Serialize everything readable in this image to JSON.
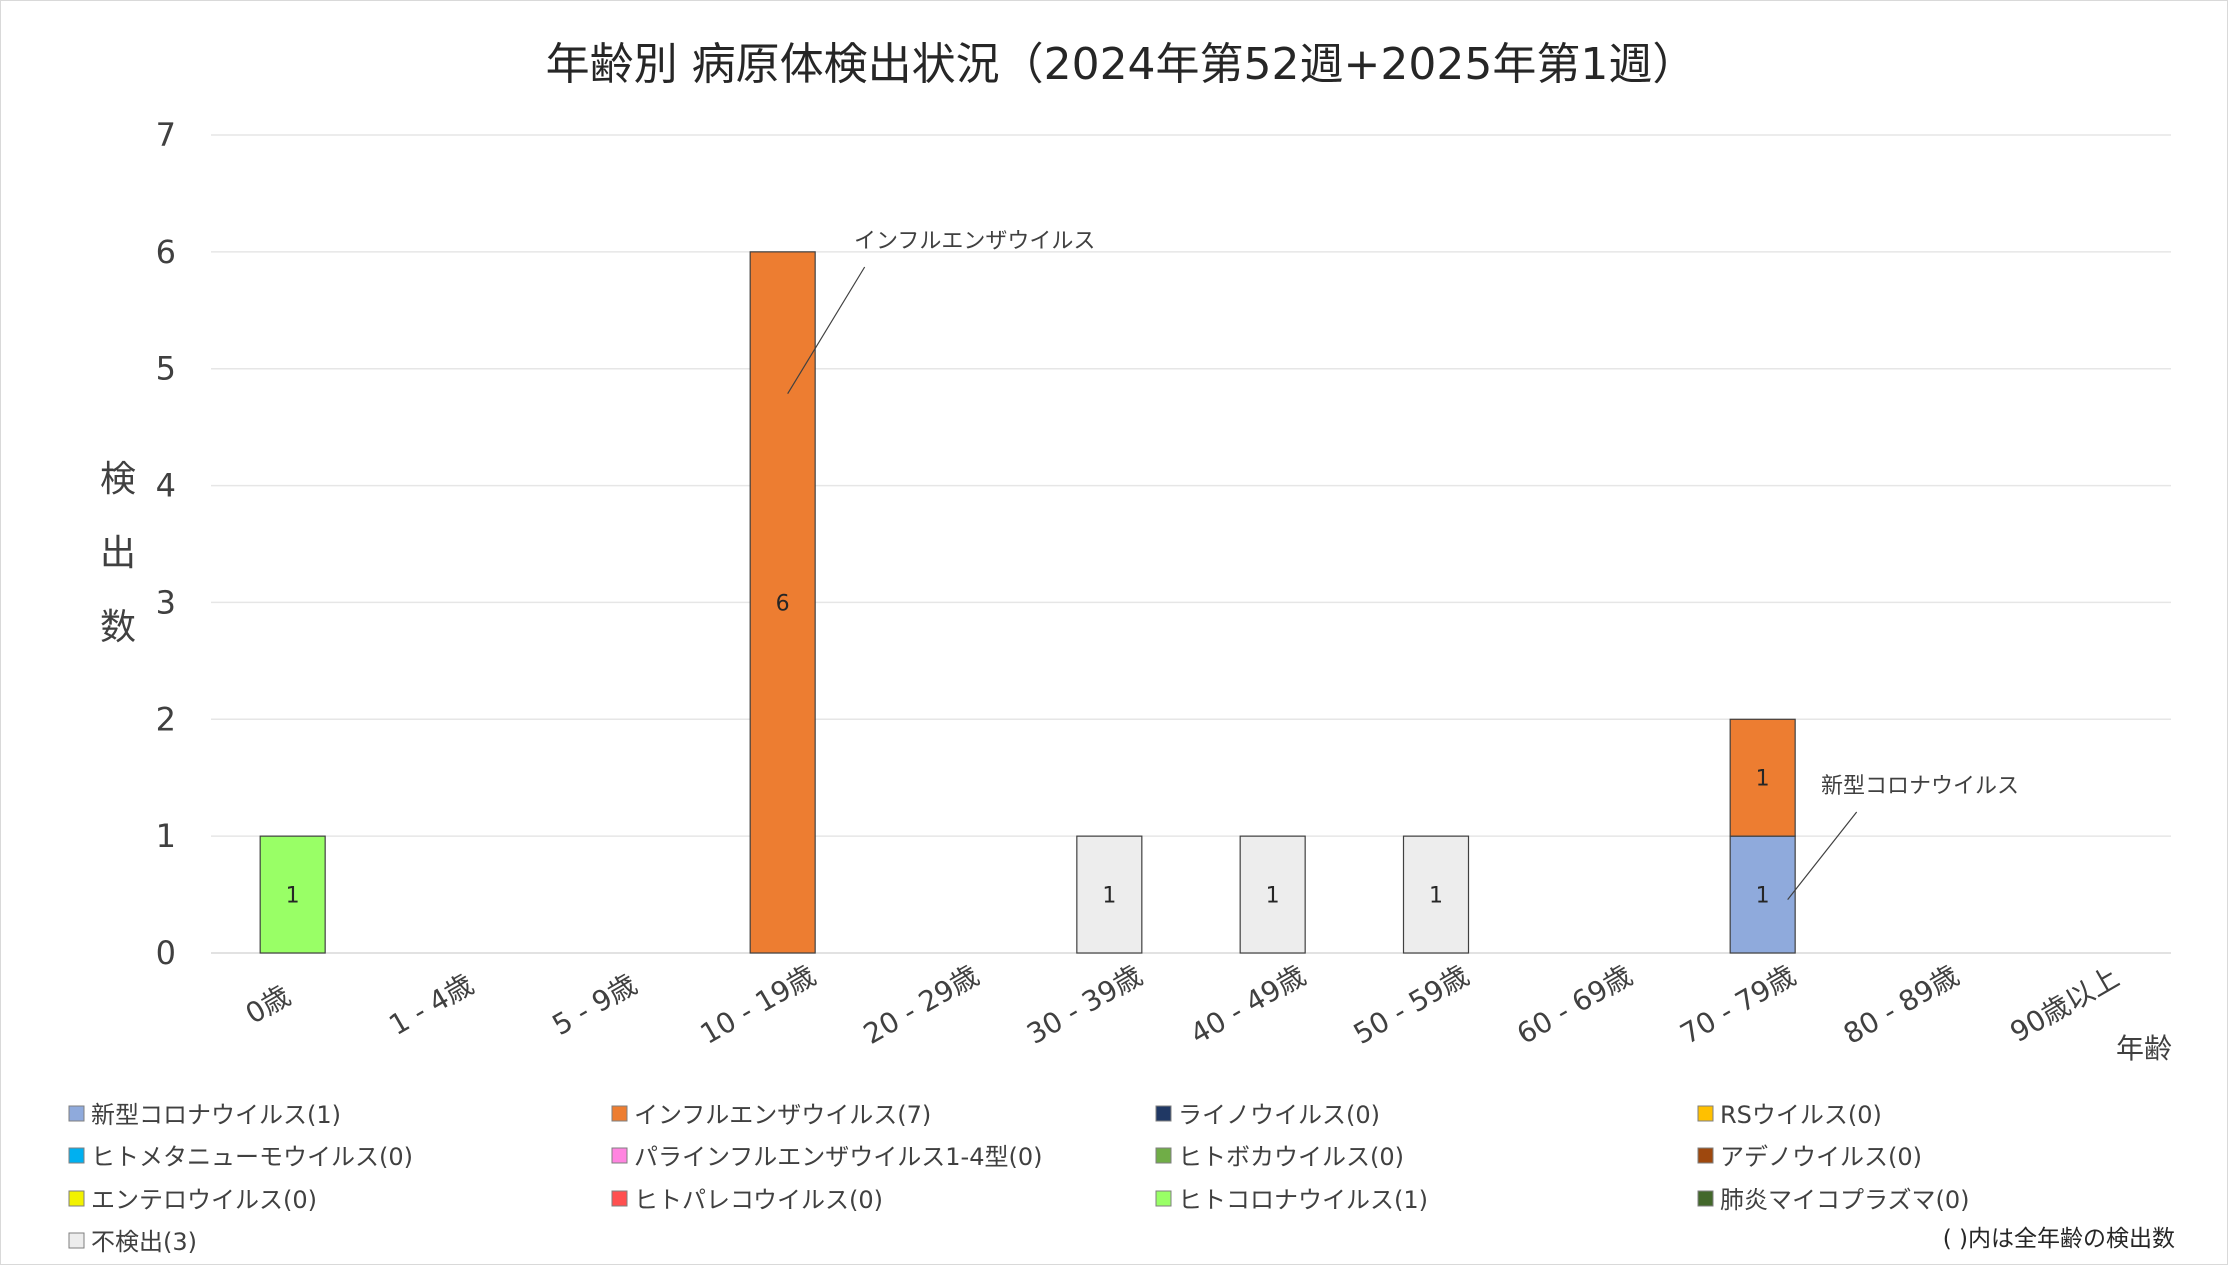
{
  "chart_data": {
    "type": "bar",
    "stacked": true,
    "title": "年齢別 病原体検出状況（2024年第52週+2025年第1週）",
    "xlabel": "年齢",
    "ylabel": "検出数",
    "ylim": [
      0,
      7
    ],
    "yticks": [
      "0",
      "1",
      "2",
      "3",
      "4",
      "5",
      "6",
      "7"
    ],
    "grid": true,
    "legend_placement": "bottom",
    "categories": [
      "0歳",
      "1 - 4歳",
      "5 - 9歳",
      "10 - 19歳",
      "20 - 29歳",
      "30 - 39歳",
      "40 - 49歳",
      "50 - 59歳",
      "60 - 69歳",
      "70 - 79歳",
      "80 - 89歳",
      "90歳以上"
    ],
    "series": [
      {
        "name": "新型コロナウイルス(1)",
        "color": "#8faadc",
        "values": [
          0,
          0,
          0,
          0,
          0,
          0,
          0,
          0,
          0,
          1,
          0,
          0
        ]
      },
      {
        "name": "インフルエンザウイルス(7)",
        "color": "#ed7d31",
        "values": [
          0,
          0,
          0,
          6,
          0,
          0,
          0,
          0,
          0,
          1,
          0,
          0
        ]
      },
      {
        "name": "ライノウイルス(0)",
        "color": "#203864",
        "values": [
          0,
          0,
          0,
          0,
          0,
          0,
          0,
          0,
          0,
          0,
          0,
          0
        ]
      },
      {
        "name": "RSウイルス(0)",
        "color": "#ffc000",
        "values": [
          0,
          0,
          0,
          0,
          0,
          0,
          0,
          0,
          0,
          0,
          0,
          0
        ]
      },
      {
        "name": "ヒトメタニューモウイルス(0)",
        "color": "#00b0f0",
        "values": [
          0,
          0,
          0,
          0,
          0,
          0,
          0,
          0,
          0,
          0,
          0,
          0
        ]
      },
      {
        "name": "パラインフルエンザウイルス1-4型(0)",
        "color": "#ff85e0",
        "values": [
          0,
          0,
          0,
          0,
          0,
          0,
          0,
          0,
          0,
          0,
          0,
          0
        ]
      },
      {
        "name": "ヒトボカウイルス(0)",
        "color": "#70ad47",
        "values": [
          0,
          0,
          0,
          0,
          0,
          0,
          0,
          0,
          0,
          0,
          0,
          0
        ]
      },
      {
        "name": "アデノウイルス(0)",
        "color": "#9e480e",
        "values": [
          0,
          0,
          0,
          0,
          0,
          0,
          0,
          0,
          0,
          0,
          0,
          0
        ]
      },
      {
        "name": "エンテロウイルス(0)",
        "color": "#f2f200",
        "values": [
          0,
          0,
          0,
          0,
          0,
          0,
          0,
          0,
          0,
          0,
          0,
          0
        ]
      },
      {
        "name": "ヒトパレコウイルス(0)",
        "color": "#ff5050",
        "values": [
          0,
          0,
          0,
          0,
          0,
          0,
          0,
          0,
          0,
          0,
          0,
          0
        ]
      },
      {
        "name": "ヒトコロナウイルス(1)",
        "color": "#99ff66",
        "values": [
          1,
          0,
          0,
          0,
          0,
          0,
          0,
          0,
          0,
          0,
          0,
          0
        ]
      },
      {
        "name": "肺炎マイコプラズマ(0)",
        "color": "#43682b",
        "values": [
          0,
          0,
          0,
          0,
          0,
          0,
          0,
          0,
          0,
          0,
          0,
          0
        ]
      },
      {
        "name": "不検出(3)",
        "color": "#ededed",
        "values": [
          0,
          0,
          0,
          0,
          0,
          1,
          1,
          1,
          0,
          0,
          0,
          0
        ]
      }
    ],
    "annotations": [
      {
        "text": "インフルエンザウイルス",
        "category": "10 - 19歳",
        "value": 5
      },
      {
        "text": "新型コロナウイルス",
        "category": "70 - 79歳",
        "value": 0.5
      }
    ],
    "footnote": "( )内は全年齢の検出数"
  }
}
